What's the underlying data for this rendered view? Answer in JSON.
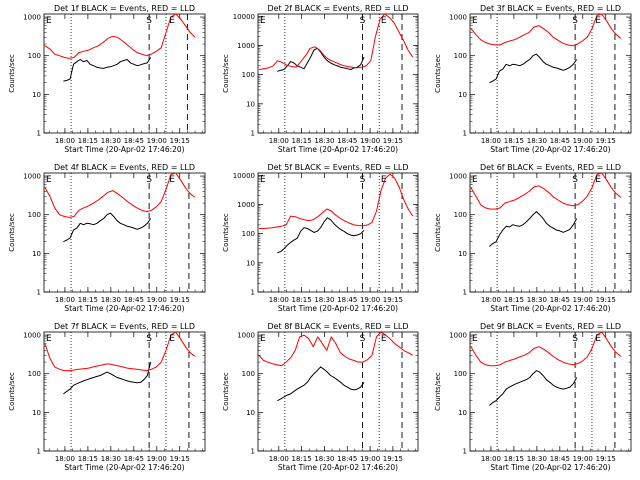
{
  "chart_data": [
    {
      "type": "line",
      "title": "Det 1f BLACK = Events, RED = LLD",
      "x_ticks": [
        "18:00",
        "18:15",
        "18:30",
        "18:45",
        "19:00",
        "19:15"
      ],
      "y_ticks": [
        "1",
        "10",
        "100",
        "1000"
      ],
      "xlabel": "Start Time (20-Apr-02 17:46:20)",
      "ylabel": "Counts/sec",
      "yscale": "log",
      "ylim": [
        1,
        1200
      ],
      "markers": [
        {
          "label": "S",
          "time": "18:55"
        },
        {
          "label": "E",
          "time": "19:10"
        }
      ],
      "dotted_times": [
        "18:04",
        "19:06"
      ],
      "dashed_times": [
        "18:55",
        "19:20"
      ],
      "series": [
        {
          "color": "#000000",
          "start": "17:59",
          "end": "18:56",
          "values": [
            22,
            23,
            25,
            60,
            70,
            80,
            70,
            75,
            60,
            55,
            50,
            48,
            47,
            50,
            52,
            55,
            60,
            70,
            75,
            80,
            65,
            60,
            55,
            58,
            62,
            65,
            90
          ]
        },
        {
          "color": "#ff0000",
          "start": "17:47",
          "end": "19:25",
          "values": [
            180,
            150,
            110,
            100,
            90,
            85,
            90,
            120,
            130,
            140,
            160,
            180,
            220,
            280,
            320,
            300,
            240,
            190,
            150,
            120,
            110,
            100,
            110,
            130,
            160,
            400,
            1000,
            1300,
            900,
            600,
            400,
            300
          ]
        }
      ]
    },
    {
      "type": "line",
      "title": "Det 2f BLACK = Events, RED = LLD",
      "x_ticks": [
        "18:00",
        "18:15",
        "18:30",
        "18:45",
        "19:00",
        "19:15"
      ],
      "y_ticks": [
        "1",
        "10",
        "100",
        "1000",
        "10000"
      ],
      "xlabel": "Start Time (20-Apr-02 17:46:20)",
      "ylabel": "Counts/sec",
      "yscale": "log",
      "ylim": [
        1,
        12000
      ],
      "markers": [
        {
          "label": "S",
          "time": "18:55"
        },
        {
          "label": "E",
          "time": "19:09"
        }
      ],
      "dotted_times": [
        "18:04",
        "19:06"
      ],
      "dashed_times": [
        "18:55",
        "19:21"
      ],
      "series": [
        {
          "color": "#000000",
          "start": "17:59",
          "end": "18:56",
          "values": [
            130,
            140,
            150,
            200,
            280,
            250,
            200,
            180,
            160,
            250,
            400,
            700,
            800,
            600,
            400,
            300,
            250,
            220,
            200,
            180,
            170,
            160,
            150,
            170,
            180,
            220,
            400
          ]
        },
        {
          "color": "#ff0000",
          "start": "17:47",
          "end": "19:28",
          "values": [
            150,
            160,
            170,
            200,
            300,
            260,
            210,
            190,
            180,
            280,
            450,
            800,
            900,
            700,
            450,
            330,
            280,
            240,
            210,
            190,
            180,
            170,
            180,
            200,
            300,
            2000,
            8000,
            12000,
            9000,
            6000,
            3000,
            1500,
            700,
            400
          ]
        }
      ]
    },
    {
      "type": "line",
      "title": "Det 3f BLACK = Events, RED = LLD",
      "x_ticks": [
        "18:00",
        "18:15",
        "18:30",
        "18:45",
        "19:00",
        "19:15"
      ],
      "y_ticks": [
        "1",
        "10",
        "100",
        "1000"
      ],
      "xlabel": "Start Time (20-Apr-02 17:46:20)",
      "ylabel": "Counts/sec",
      "yscale": "log",
      "ylim": [
        1,
        1200
      ],
      "markers": [
        {
          "label": "S",
          "time": "18:55"
        },
        {
          "label": "E",
          "time": "19:10"
        }
      ],
      "dotted_times": [
        "18:04",
        "19:06"
      ],
      "dashed_times": [
        "18:55",
        "19:21"
      ],
      "series": [
        {
          "color": "#000000",
          "start": "17:59",
          "end": "18:56",
          "values": [
            20,
            22,
            25,
            40,
            45,
            60,
            55,
            60,
            58,
            55,
            60,
            70,
            80,
            100,
            110,
            90,
            70,
            60,
            55,
            50,
            48,
            45,
            42,
            45,
            50,
            60,
            80
          ]
        },
        {
          "color": "#ff0000",
          "start": "17:47",
          "end": "19:25",
          "values": [
            500,
            350,
            260,
            220,
            200,
            190,
            190,
            220,
            240,
            260,
            300,
            350,
            400,
            550,
            600,
            500,
            400,
            300,
            250,
            210,
            190,
            180,
            200,
            240,
            300,
            500,
            1100,
            1300,
            800,
            500,
            350,
            280
          ]
        }
      ]
    },
    {
      "type": "line",
      "title": "Det 4f BLACK = Events, RED = LLD",
      "x_ticks": [
        "18:00",
        "18:15",
        "18:30",
        "18:45",
        "19:00",
        "19:15"
      ],
      "y_ticks": [
        "1",
        "10",
        "100",
        "1000"
      ],
      "xlabel": "Start Time (20-Apr-02 17:46:20)",
      "ylabel": "Counts/sec",
      "yscale": "log",
      "ylim": [
        1,
        1200
      ],
      "markers": [
        {
          "label": "S",
          "time": "18:55"
        },
        {
          "label": "E",
          "time": "19:10"
        }
      ],
      "dotted_times": [
        "18:04",
        "19:06"
      ],
      "dashed_times": [
        "18:55",
        "19:21"
      ],
      "series": [
        {
          "color": "#000000",
          "start": "17:59",
          "end": "18:56",
          "values": [
            20,
            22,
            25,
            40,
            45,
            60,
            55,
            60,
            58,
            55,
            60,
            70,
            80,
            100,
            110,
            90,
            70,
            60,
            55,
            50,
            48,
            45,
            42,
            45,
            50,
            60,
            80
          ]
        },
        {
          "color": "#ff0000",
          "start": "17:47",
          "end": "19:25",
          "values": [
            500,
            300,
            150,
            100,
            90,
            85,
            90,
            130,
            150,
            170,
            200,
            240,
            300,
            380,
            420,
            350,
            280,
            220,
            180,
            150,
            130,
            120,
            130,
            160,
            220,
            450,
            1100,
            1300,
            800,
            500,
            350,
            280
          ]
        }
      ]
    },
    {
      "type": "line",
      "title": "Det 5f BLACK = Events, RED = LLD",
      "x_ticks": [
        "18:00",
        "18:15",
        "18:30",
        "18:45",
        "19:00",
        "19:15"
      ],
      "y_ticks": [
        "1",
        "10",
        "100",
        "1000",
        "10000"
      ],
      "xlabel": "Start Time (20-Apr-02 17:46:20)",
      "ylabel": "Counts/sec",
      "yscale": "log",
      "ylim": [
        1,
        12000
      ],
      "markers": [
        {
          "label": "S",
          "time": "18:55"
        },
        {
          "label": "E",
          "time": "19:09"
        }
      ],
      "dotted_times": [
        "18:04",
        "19:06"
      ],
      "dashed_times": [
        "18:55",
        "19:21"
      ],
      "series": [
        {
          "color": "#000000",
          "start": "17:59",
          "end": "18:56",
          "values": [
            22,
            24,
            30,
            40,
            50,
            60,
            70,
            120,
            160,
            150,
            130,
            110,
            120,
            160,
            250,
            350,
            300,
            220,
            170,
            140,
            120,
            100,
            90,
            85,
            90,
            100,
            130
          ]
        },
        {
          "color": "#ff0000",
          "start": "17:47",
          "end": "19:28",
          "values": [
            150,
            150,
            155,
            160,
            170,
            180,
            200,
            400,
            380,
            330,
            300,
            280,
            300,
            380,
            520,
            700,
            600,
            430,
            330,
            270,
            230,
            200,
            190,
            185,
            200,
            240,
            600,
            3000,
            8000,
            11000,
            8000,
            4000,
            1500,
            700,
            400
          ]
        }
      ]
    },
    {
      "type": "line",
      "title": "Det 6f BLACK = Events, RED = LLD",
      "x_ticks": [
        "18:00",
        "18:15",
        "18:30",
        "18:45",
        "19:00",
        "19:15"
      ],
      "y_ticks": [
        "1",
        "10",
        "100",
        "1000"
      ],
      "xlabel": "Start Time (20-Apr-02 17:46:20)",
      "ylabel": "Counts/sec",
      "yscale": "log",
      "ylim": [
        1,
        1200
      ],
      "markers": [
        {
          "label": "S",
          "time": "18:55"
        },
        {
          "label": "E",
          "time": "19:10"
        }
      ],
      "dotted_times": [
        "18:04",
        "19:06"
      ],
      "dashed_times": [
        "18:55",
        "19:21"
      ],
      "series": [
        {
          "color": "#000000",
          "start": "17:59",
          "end": "18:56",
          "values": [
            15,
            18,
            20,
            30,
            40,
            50,
            48,
            55,
            52,
            50,
            55,
            65,
            80,
            100,
            120,
            100,
            80,
            60,
            50,
            45,
            40,
            38,
            35,
            38,
            42,
            55,
            80
          ]
        },
        {
          "color": "#ff0000",
          "start": "17:47",
          "end": "19:25",
          "values": [
            500,
            300,
            180,
            150,
            140,
            140,
            150,
            200,
            220,
            240,
            280,
            330,
            400,
            520,
            560,
            480,
            380,
            290,
            240,
            200,
            180,
            170,
            180,
            220,
            300,
            500,
            1100,
            1300,
            800,
            500,
            350,
            280
          ]
        }
      ]
    },
    {
      "type": "line",
      "title": "Det 7f BLACK = Events, RED = LLD",
      "x_ticks": [
        "18:00",
        "18:15",
        "18:30",
        "18:45",
        "19:00",
        "19:15"
      ],
      "y_ticks": [
        "1",
        "10",
        "100",
        "1000"
      ],
      "xlabel": "Start Time (20-Apr-02 17:46:20)",
      "ylabel": "Counts/sec",
      "yscale": "log",
      "ylim": [
        1,
        1200
      ],
      "markers": [
        {
          "label": "S",
          "time": "18:55"
        },
        {
          "label": "E",
          "time": "19:10"
        }
      ],
      "dotted_times": [
        "18:04",
        "19:06"
      ],
      "dashed_times": [
        "18:55",
        "19:21"
      ],
      "series": [
        {
          "color": "#000000",
          "start": "17:59",
          "end": "18:56",
          "values": [
            30,
            35,
            40,
            50,
            55,
            60,
            65,
            70,
            75,
            80,
            85,
            90,
            100,
            110,
            100,
            90,
            80,
            75,
            70,
            65,
            62,
            60,
            58,
            60,
            70,
            90,
            200
          ]
        },
        {
          "color": "#ff0000",
          "start": "17:47",
          "end": "19:25",
          "values": [
            600,
            250,
            150,
            130,
            120,
            120,
            125,
            130,
            135,
            140,
            150,
            160,
            170,
            180,
            170,
            160,
            150,
            140,
            135,
            130,
            125,
            120,
            130,
            150,
            200,
            400,
            1000,
            1300,
            800,
            500,
            350,
            280
          ]
        }
      ]
    },
    {
      "type": "line",
      "title": "Det 8f BLACK = Events, RED = LLD",
      "x_ticks": [
        "18:00",
        "18:15",
        "18:30",
        "18:45",
        "19:00",
        "19:15"
      ],
      "y_ticks": [
        "1",
        "10",
        "100",
        "1000"
      ],
      "xlabel": "Start Time (20-Apr-02 17:46:20)",
      "ylabel": "Counts/sec",
      "yscale": "log",
      "ylim": [
        1,
        1200
      ],
      "markers": [
        {
          "label": "S",
          "time": "18:55"
        },
        {
          "label": "E",
          "time": "19:09"
        }
      ],
      "dotted_times": [
        "18:04",
        "19:06"
      ],
      "dashed_times": [
        "18:55",
        "19:21"
      ],
      "series": [
        {
          "color": "#000000",
          "start": "17:59",
          "end": "18:56",
          "values": [
            20,
            22,
            25,
            28,
            30,
            35,
            40,
            45,
            50,
            60,
            80,
            100,
            120,
            150,
            130,
            110,
            90,
            80,
            70,
            60,
            50,
            45,
            40,
            38,
            40,
            45,
            60
          ]
        },
        {
          "color": "#ff0000",
          "start": "17:47",
          "end": "19:28",
          "values": [
            300,
            220,
            200,
            180,
            170,
            160,
            200,
            260,
            400,
            900,
            1000,
            800,
            500,
            900,
            600,
            400,
            900,
            600,
            350,
            280,
            240,
            220,
            200,
            200,
            230,
            300,
            900,
            1200,
            1000,
            800,
            600,
            500,
            400,
            350,
            300
          ]
        }
      ]
    },
    {
      "type": "line",
      "title": "Det 9f BLACK = Events, RED = LLD",
      "x_ticks": [
        "18:00",
        "18:15",
        "18:30",
        "18:45",
        "19:00",
        "19:15"
      ],
      "y_ticks": [
        "1",
        "10",
        "100",
        "1000"
      ],
      "xlabel": "Start Time (20-Apr-02 17:46:20)",
      "ylabel": "Counts/sec",
      "yscale": "log",
      "ylim": [
        1,
        1200
      ],
      "markers": [
        {
          "label": "S",
          "time": "18:55"
        },
        {
          "label": "E",
          "time": "19:10"
        }
      ],
      "dotted_times": [
        "18:04",
        "19:06"
      ],
      "dashed_times": [
        "18:55",
        "19:21"
      ],
      "series": [
        {
          "color": "#000000",
          "start": "17:59",
          "end": "18:56",
          "values": [
            15,
            18,
            20,
            25,
            30,
            40,
            45,
            50,
            55,
            60,
            65,
            70,
            80,
            100,
            120,
            110,
            90,
            70,
            60,
            50,
            45,
            42,
            40,
            42,
            45,
            55,
            80
          ]
        },
        {
          "color": "#ff0000",
          "start": "17:47",
          "end": "19:25",
          "values": [
            500,
            300,
            200,
            170,
            160,
            160,
            170,
            200,
            220,
            240,
            270,
            300,
            350,
            450,
            500,
            430,
            350,
            280,
            230,
            200,
            180,
            170,
            180,
            210,
            270,
            450,
            1000,
            1300,
            800,
            500,
            350,
            280
          ]
        }
      ]
    }
  ]
}
